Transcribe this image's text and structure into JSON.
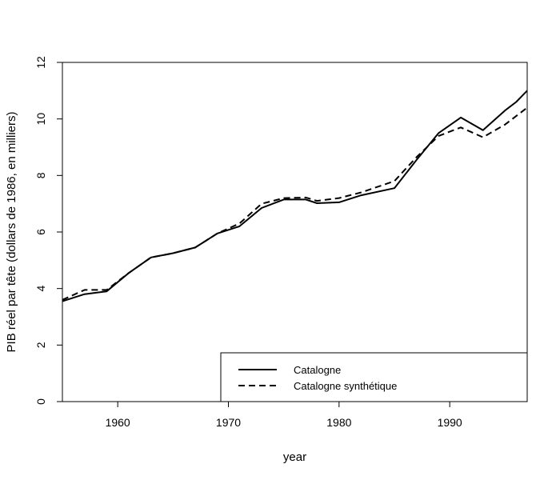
{
  "chart_data": {
    "type": "line",
    "title": "",
    "xlabel": "year",
    "ylabel": "PIB réel par tête (dollars de 1986, en milliers)",
    "xlim": [
      1955,
      1997
    ],
    "ylim": [
      0,
      12
    ],
    "xticks": [
      1960,
      1970,
      1980,
      1990
    ],
    "yticks": [
      0,
      2,
      4,
      6,
      8,
      10,
      12
    ],
    "grid": false,
    "legend_position": "bottom-right",
    "series": [
      {
        "name": "Catalogne",
        "line_style": "solid",
        "color": "#000000",
        "points": [
          [
            1955,
            3.55
          ],
          [
            1957,
            3.8
          ],
          [
            1959,
            3.9
          ],
          [
            1961,
            4.55
          ],
          [
            1963,
            5.1
          ],
          [
            1965,
            5.25
          ],
          [
            1967,
            5.45
          ],
          [
            1969,
            5.95
          ],
          [
            1971,
            6.2
          ],
          [
            1973,
            6.85
          ],
          [
            1975,
            7.15
          ],
          [
            1977,
            7.15
          ],
          [
            1978,
            7.02
          ],
          [
            1980,
            7.05
          ],
          [
            1982,
            7.3
          ],
          [
            1985,
            7.55
          ],
          [
            1987,
            8.55
          ],
          [
            1989,
            9.5
          ],
          [
            1991,
            10.05
          ],
          [
            1993,
            9.6
          ],
          [
            1995,
            10.3
          ],
          [
            1996,
            10.6
          ],
          [
            1997,
            11.0
          ]
        ]
      },
      {
        "name": "Catalogne synthétique",
        "line_style": "dashed",
        "color": "#000000",
        "points": [
          [
            1955,
            3.6
          ],
          [
            1957,
            3.95
          ],
          [
            1959,
            3.95
          ],
          [
            1961,
            4.55
          ],
          [
            1963,
            5.1
          ],
          [
            1965,
            5.25
          ],
          [
            1967,
            5.45
          ],
          [
            1969,
            5.95
          ],
          [
            1971,
            6.3
          ],
          [
            1973,
            7.0
          ],
          [
            1975,
            7.2
          ],
          [
            1977,
            7.22
          ],
          [
            1978,
            7.1
          ],
          [
            1980,
            7.2
          ],
          [
            1982,
            7.4
          ],
          [
            1985,
            7.8
          ],
          [
            1987,
            8.65
          ],
          [
            1989,
            9.4
          ],
          [
            1991,
            9.7
          ],
          [
            1993,
            9.35
          ],
          [
            1995,
            9.8
          ],
          [
            1996,
            10.1
          ],
          [
            1997,
            10.4
          ]
        ]
      }
    ]
  }
}
